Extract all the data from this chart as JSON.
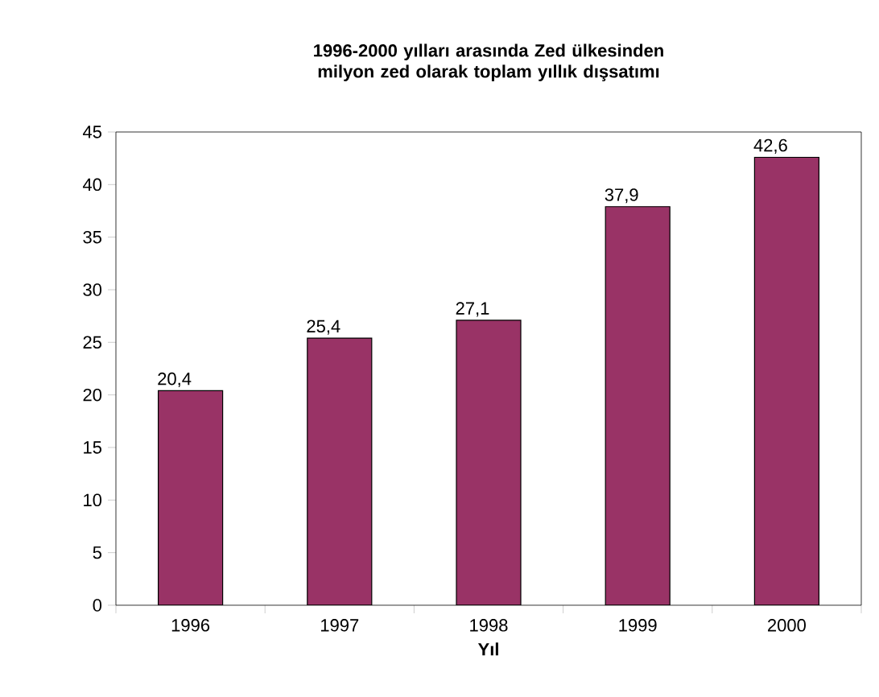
{
  "chart_data": {
    "type": "bar",
    "title": "1996-2000 yılları arasında Zed ülkesinden milyon zed olarak toplam yıllık dışsatımı",
    "xlabel": "Yıl",
    "categories": [
      "1996",
      "1997",
      "1998",
      "1999",
      "2000"
    ],
    "values": [
      20.4,
      25.4,
      27.1,
      37.9,
      42.6
    ],
    "value_labels": [
      "20,4",
      "25,4",
      "27,1",
      "37,9",
      "42,6"
    ],
    "color": "#993366",
    "ylim": [
      0,
      45
    ],
    "yticks": [
      0,
      5,
      10,
      15,
      20,
      25,
      30,
      35,
      40,
      45
    ]
  }
}
